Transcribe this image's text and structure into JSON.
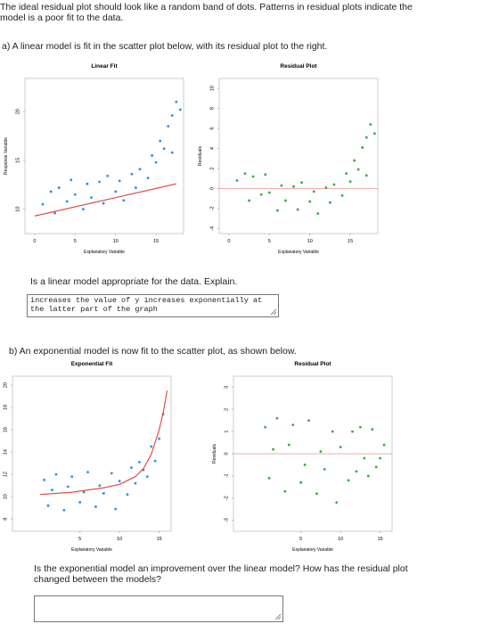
{
  "intro": "The ideal residual plot should look like a random band of dots. Patterns in residual plots indicate the model is a poor fit to the data.",
  "part_a": {
    "prompt": "a) A linear model is fit in the scatter plot below, with its residual plot to the right.",
    "question": "Is a linear model appropriate for the data. Explain.",
    "answer": "increases the value of y increases exponentially at the latter part of the graph"
  },
  "part_b": {
    "prompt": "b) An exponential model is now fit to the scatter plot, as shown below.",
    "question": "Is the exponential model an improvement over the linear model? How has the residual plot changed between the models?"
  },
  "chart_data": [
    {
      "type": "scatter",
      "title": "Linear Fit",
      "x_label": "Explanatory Variable",
      "y_label": "Response Variable",
      "xlim": [
        -1.2,
        18.4
      ],
      "ylim": [
        7.5,
        23.4
      ],
      "xticks": [
        0,
        5,
        10,
        15
      ],
      "yticks": [
        10,
        15,
        20
      ],
      "series": [
        {
          "color": "#2f8fd8",
          "x": [
            1,
            2,
            2.5,
            3,
            4,
            4.5,
            5,
            6,
            6.5,
            7,
            8,
            8.5,
            9,
            10,
            10.5,
            11,
            12,
            12.5,
            13,
            14,
            14.5,
            15,
            15.5,
            16,
            16.5,
            17,
            17,
            17.5,
            18
          ],
          "values": [
            10.5,
            11.8,
            9.6,
            12.2,
            10.8,
            13,
            11.5,
            10,
            12.6,
            11.2,
            12.8,
            10.6,
            13.4,
            11.8,
            12.9,
            10.9,
            13.6,
            12.2,
            14.1,
            13.2,
            15.5,
            14.8,
            17,
            16.2,
            18.5,
            19.6,
            15.8,
            21,
            20.2
          ]
        },
        {
          "color": "#e0403a",
          "line": true,
          "x": [
            0,
            17.5
          ],
          "values": [
            9.3,
            12.6
          ]
        }
      ]
    },
    {
      "type": "scatter",
      "title": "Residual Plot",
      "x_label": "Explanatory Variable",
      "y_label": "Residuals",
      "xlim": [
        -1.2,
        18.4
      ],
      "ylim": [
        -4.5,
        11
      ],
      "xticks": [
        0,
        5,
        10,
        15
      ],
      "yticks": [
        -4,
        -2,
        0,
        2,
        4,
        6,
        8,
        10
      ],
      "reference_line": {
        "y": 0,
        "color": "#e89090"
      },
      "series": [
        {
          "color": "#3aa83a",
          "x": [
            1,
            2,
            2.5,
            3,
            4,
            4.5,
            5,
            6,
            6.5,
            7,
            8,
            8.5,
            9,
            10,
            10.5,
            11,
            12,
            12.5,
            13,
            14,
            14.5,
            15,
            15.5,
            16,
            16.5,
            17,
            17,
            17.5,
            18
          ],
          "values": [
            0.8,
            1.5,
            -1.2,
            1.2,
            -0.6,
            1.4,
            -0.4,
            -2.2,
            0.3,
            -1.2,
            0.2,
            -2.1,
            0.6,
            -1.3,
            -0.3,
            -2.5,
            0.1,
            -1.4,
            0.4,
            -0.7,
            1.5,
            0.7,
            2.8,
            1.9,
            4.1,
            5.1,
            1.3,
            6.4,
            5.5
          ]
        }
      ]
    },
    {
      "type": "scatter",
      "title": "Exponential Fit",
      "x_label": "Explanatory Variable",
      "y_label": "Response Variable",
      "xlim": [
        -3.5,
        16.5
      ],
      "ylim": [
        6.9,
        20.8
      ],
      "xticks": [
        5,
        10,
        15
      ],
      "yticks": [
        8,
        10,
        12,
        14,
        16,
        18,
        20
      ],
      "series": [
        {
          "color": "#2f8fd8",
          "x": [
            0.5,
            1,
            1.5,
            2,
            3,
            3.5,
            4,
            5,
            5.5,
            6,
            7,
            7.5,
            8,
            9,
            9.5,
            10,
            11,
            11.5,
            12,
            12.5,
            13,
            13.5,
            14,
            14.5,
            15,
            15.5
          ],
          "values": [
            11.5,
            9.2,
            10.6,
            12,
            8.8,
            10.9,
            11.8,
            9.5,
            10.4,
            12.2,
            9.1,
            11,
            10.3,
            12.1,
            8.9,
            11.4,
            10.2,
            12.6,
            11.2,
            13.1,
            12.4,
            11.8,
            14.5,
            13.2,
            15.2,
            17.4
          ]
        },
        {
          "color": "#e0403a",
          "line": true,
          "x": [
            0,
            2,
            4,
            6,
            8,
            10,
            12,
            13,
            14,
            15,
            15.5,
            16
          ],
          "values": [
            10.2,
            10.3,
            10.4,
            10.6,
            10.8,
            11.1,
            11.8,
            12.5,
            13.8,
            16,
            17.5,
            19.5
          ]
        }
      ]
    },
    {
      "type": "scatter",
      "title": "Residual Plot",
      "x_label": "Explanatory Variable",
      "y_label": "Residuals",
      "xlim": [
        -3.5,
        16.5
      ],
      "ylim": [
        -3.5,
        3.5
      ],
      "xticks": [
        5,
        10,
        15
      ],
      "yticks": [
        -3,
        -2,
        -1,
        0,
        1,
        2,
        3
      ],
      "reference_line": {
        "y": 0,
        "color": "#e89090"
      },
      "series": [
        {
          "color": "#3aa83a",
          "x": [
            0.5,
            1,
            1.5,
            2,
            3,
            3.5,
            4,
            5,
            5.5,
            6,
            7,
            7.5,
            8,
            9,
            9.5,
            10,
            11,
            11.5,
            12,
            12.5,
            13,
            13.5,
            14,
            14.5,
            15,
            15.5
          ],
          "values": [
            1.2,
            -1.1,
            0.2,
            1.6,
            -1.7,
            0.4,
            1.3,
            -1.3,
            -0.5,
            1.5,
            -1.8,
            0.1,
            -0.7,
            1,
            -2.2,
            0.3,
            -1.2,
            1,
            -0.8,
            1.2,
            -0.2,
            -1,
            1.1,
            -0.6,
            -0.2,
            0.4
          ]
        }
      ]
    }
  ]
}
